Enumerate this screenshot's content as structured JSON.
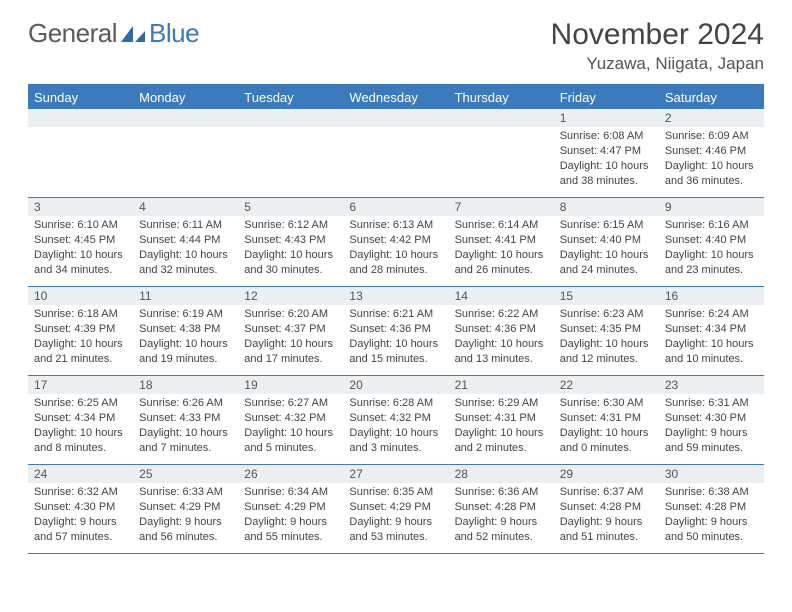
{
  "brand": {
    "name1": "General",
    "name2": "Blue"
  },
  "title": "November 2024",
  "location": "Yuzawa, Niigata, Japan",
  "colors": {
    "accent": "#3a7abd",
    "header_bg": "#eceff1",
    "text": "#444444",
    "background": "#ffffff"
  },
  "day_headers": [
    "Sunday",
    "Monday",
    "Tuesday",
    "Wednesday",
    "Thursday",
    "Friday",
    "Saturday"
  ],
  "weeks": [
    [
      null,
      null,
      null,
      null,
      null,
      {
        "num": "1",
        "sunrise": "Sunrise: 6:08 AM",
        "sunset": "Sunset: 4:47 PM",
        "daylight": "Daylight: 10 hours and 38 minutes."
      },
      {
        "num": "2",
        "sunrise": "Sunrise: 6:09 AM",
        "sunset": "Sunset: 4:46 PM",
        "daylight": "Daylight: 10 hours and 36 minutes."
      }
    ],
    [
      {
        "num": "3",
        "sunrise": "Sunrise: 6:10 AM",
        "sunset": "Sunset: 4:45 PM",
        "daylight": "Daylight: 10 hours and 34 minutes."
      },
      {
        "num": "4",
        "sunrise": "Sunrise: 6:11 AM",
        "sunset": "Sunset: 4:44 PM",
        "daylight": "Daylight: 10 hours and 32 minutes."
      },
      {
        "num": "5",
        "sunrise": "Sunrise: 6:12 AM",
        "sunset": "Sunset: 4:43 PM",
        "daylight": "Daylight: 10 hours and 30 minutes."
      },
      {
        "num": "6",
        "sunrise": "Sunrise: 6:13 AM",
        "sunset": "Sunset: 4:42 PM",
        "daylight": "Daylight: 10 hours and 28 minutes."
      },
      {
        "num": "7",
        "sunrise": "Sunrise: 6:14 AM",
        "sunset": "Sunset: 4:41 PM",
        "daylight": "Daylight: 10 hours and 26 minutes."
      },
      {
        "num": "8",
        "sunrise": "Sunrise: 6:15 AM",
        "sunset": "Sunset: 4:40 PM",
        "daylight": "Daylight: 10 hours and 24 minutes."
      },
      {
        "num": "9",
        "sunrise": "Sunrise: 6:16 AM",
        "sunset": "Sunset: 4:40 PM",
        "daylight": "Daylight: 10 hours and 23 minutes."
      }
    ],
    [
      {
        "num": "10",
        "sunrise": "Sunrise: 6:18 AM",
        "sunset": "Sunset: 4:39 PM",
        "daylight": "Daylight: 10 hours and 21 minutes."
      },
      {
        "num": "11",
        "sunrise": "Sunrise: 6:19 AM",
        "sunset": "Sunset: 4:38 PM",
        "daylight": "Daylight: 10 hours and 19 minutes."
      },
      {
        "num": "12",
        "sunrise": "Sunrise: 6:20 AM",
        "sunset": "Sunset: 4:37 PM",
        "daylight": "Daylight: 10 hours and 17 minutes."
      },
      {
        "num": "13",
        "sunrise": "Sunrise: 6:21 AM",
        "sunset": "Sunset: 4:36 PM",
        "daylight": "Daylight: 10 hours and 15 minutes."
      },
      {
        "num": "14",
        "sunrise": "Sunrise: 6:22 AM",
        "sunset": "Sunset: 4:36 PM",
        "daylight": "Daylight: 10 hours and 13 minutes."
      },
      {
        "num": "15",
        "sunrise": "Sunrise: 6:23 AM",
        "sunset": "Sunset: 4:35 PM",
        "daylight": "Daylight: 10 hours and 12 minutes."
      },
      {
        "num": "16",
        "sunrise": "Sunrise: 6:24 AM",
        "sunset": "Sunset: 4:34 PM",
        "daylight": "Daylight: 10 hours and 10 minutes."
      }
    ],
    [
      {
        "num": "17",
        "sunrise": "Sunrise: 6:25 AM",
        "sunset": "Sunset: 4:34 PM",
        "daylight": "Daylight: 10 hours and 8 minutes."
      },
      {
        "num": "18",
        "sunrise": "Sunrise: 6:26 AM",
        "sunset": "Sunset: 4:33 PM",
        "daylight": "Daylight: 10 hours and 7 minutes."
      },
      {
        "num": "19",
        "sunrise": "Sunrise: 6:27 AM",
        "sunset": "Sunset: 4:32 PM",
        "daylight": "Daylight: 10 hours and 5 minutes."
      },
      {
        "num": "20",
        "sunrise": "Sunrise: 6:28 AM",
        "sunset": "Sunset: 4:32 PM",
        "daylight": "Daylight: 10 hours and 3 minutes."
      },
      {
        "num": "21",
        "sunrise": "Sunrise: 6:29 AM",
        "sunset": "Sunset: 4:31 PM",
        "daylight": "Daylight: 10 hours and 2 minutes."
      },
      {
        "num": "22",
        "sunrise": "Sunrise: 6:30 AM",
        "sunset": "Sunset: 4:31 PM",
        "daylight": "Daylight: 10 hours and 0 minutes."
      },
      {
        "num": "23",
        "sunrise": "Sunrise: 6:31 AM",
        "sunset": "Sunset: 4:30 PM",
        "daylight": "Daylight: 9 hours and 59 minutes."
      }
    ],
    [
      {
        "num": "24",
        "sunrise": "Sunrise: 6:32 AM",
        "sunset": "Sunset: 4:30 PM",
        "daylight": "Daylight: 9 hours and 57 minutes."
      },
      {
        "num": "25",
        "sunrise": "Sunrise: 6:33 AM",
        "sunset": "Sunset: 4:29 PM",
        "daylight": "Daylight: 9 hours and 56 minutes."
      },
      {
        "num": "26",
        "sunrise": "Sunrise: 6:34 AM",
        "sunset": "Sunset: 4:29 PM",
        "daylight": "Daylight: 9 hours and 55 minutes."
      },
      {
        "num": "27",
        "sunrise": "Sunrise: 6:35 AM",
        "sunset": "Sunset: 4:29 PM",
        "daylight": "Daylight: 9 hours and 53 minutes."
      },
      {
        "num": "28",
        "sunrise": "Sunrise: 6:36 AM",
        "sunset": "Sunset: 4:28 PM",
        "daylight": "Daylight: 9 hours and 52 minutes."
      },
      {
        "num": "29",
        "sunrise": "Sunrise: 6:37 AM",
        "sunset": "Sunset: 4:28 PM",
        "daylight": "Daylight: 9 hours and 51 minutes."
      },
      {
        "num": "30",
        "sunrise": "Sunrise: 6:38 AM",
        "sunset": "Sunset: 4:28 PM",
        "daylight": "Daylight: 9 hours and 50 minutes."
      }
    ]
  ]
}
